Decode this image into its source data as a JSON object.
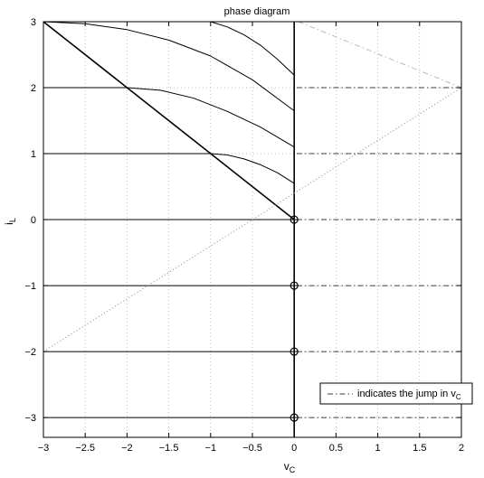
{
  "chart_data": {
    "type": "line",
    "title": "phase diagram",
    "xlabel": "v",
    "xlabel_sub": "C",
    "ylabel": "i",
    "ylabel_sub": "L",
    "xlim": [
      -3,
      2
    ],
    "ylim": [
      -3.3,
      3
    ],
    "x_ticks": [
      -3,
      -2.5,
      -2,
      -1.5,
      -1,
      -0.5,
      0,
      0.5,
      1,
      1.5,
      2
    ],
    "x_tick_labels": [
      "−3",
      "−2.5",
      "−2",
      "−1.5",
      "−1",
      "−0.5",
      "0",
      "0.5",
      "1",
      "1.5",
      "2"
    ],
    "y_ticks": [
      -3,
      -2,
      -1,
      0,
      1,
      2,
      3
    ],
    "y_tick_labels": [
      "−3",
      "−2",
      "−1",
      "0",
      "1",
      "2",
      "3"
    ],
    "grid": true,
    "legend": {
      "placement": "bottom-right",
      "text": "indicates the jump in v",
      "text_sub": "C"
    },
    "series": [
      {
        "style": "solid",
        "color": "#000000",
        "width": 1.6,
        "x": [
          -3,
          0
        ],
        "y": [
          3,
          0
        ]
      },
      {
        "style": "solid",
        "color": "#000000",
        "width": 1.6,
        "x": [
          0,
          0
        ],
        "y": [
          -3.3,
          3
        ]
      },
      {
        "style": "solid",
        "color": "#000000",
        "width": 1,
        "x": [
          -3,
          -0.03
        ],
        "y": [
          -3,
          -3
        ]
      },
      {
        "style": "solid",
        "color": "#000000",
        "width": 1,
        "x": [
          -3,
          -0.03
        ],
        "y": [
          -2,
          -2
        ]
      },
      {
        "style": "solid",
        "color": "#000000",
        "width": 1,
        "x": [
          -3,
          -0.03
        ],
        "y": [
          -1,
          -1
        ]
      },
      {
        "style": "solid",
        "color": "#000000",
        "width": 1,
        "x": [
          -3,
          -0.03
        ],
        "y": [
          0,
          0
        ]
      },
      {
        "style": "solid",
        "color": "#000000",
        "width": 1,
        "x": [
          -3,
          -1.0,
          -0.8,
          -0.6,
          -0.4,
          -0.2,
          0
        ],
        "y": [
          1,
          1,
          0.98,
          0.92,
          0.83,
          0.71,
          0.55
        ]
      },
      {
        "style": "solid",
        "color": "#000000",
        "width": 1,
        "x": [
          -3,
          -2.0,
          -1.6,
          -1.2,
          -0.8,
          -0.4,
          0
        ],
        "y": [
          2,
          2,
          1.96,
          1.84,
          1.64,
          1.4,
          1.1
        ]
      },
      {
        "style": "solid",
        "color": "#000000",
        "width": 1,
        "x": [
          -3,
          -2.5,
          -2.0,
          -1.5,
          -1.0,
          -0.5,
          0
        ],
        "y": [
          3,
          2.97,
          2.88,
          2.72,
          2.48,
          2.12,
          1.65
        ]
      },
      {
        "style": "solid",
        "color": "#000000",
        "width": 1,
        "x": [
          -1.0,
          -0.8,
          -0.6,
          -0.4,
          -0.2,
          0
        ],
        "y": [
          3,
          2.92,
          2.8,
          2.64,
          2.43,
          2.19
        ]
      },
      {
        "style": "dotted",
        "color": "#999999",
        "width": 1,
        "x": [
          -3,
          2
        ],
        "y": [
          -2,
          2
        ]
      },
      {
        "style": "dashdot",
        "color": "#bbbbbb",
        "width": 1,
        "x": [
          0.05,
          2
        ],
        "y": [
          3,
          2
        ]
      },
      {
        "style": "dashdot",
        "color": "#000000",
        "width": 0.8,
        "x": [
          0.03,
          2
        ],
        "y": [
          2,
          2
        ]
      },
      {
        "style": "dashdot",
        "color": "#000000",
        "width": 0.8,
        "x": [
          0.03,
          2
        ],
        "y": [
          1,
          1
        ]
      },
      {
        "style": "dashdot",
        "color": "#000000",
        "width": 0.8,
        "x": [
          0.03,
          2
        ],
        "y": [
          0,
          0
        ]
      },
      {
        "style": "dashdot",
        "color": "#000000",
        "width": 0.8,
        "x": [
          0.03,
          2
        ],
        "y": [
          -1,
          -1
        ]
      },
      {
        "style": "dashdot",
        "color": "#000000",
        "width": 0.8,
        "x": [
          0.03,
          2
        ],
        "y": [
          -2,
          -2
        ]
      },
      {
        "style": "dashdot",
        "color": "#000000",
        "width": 0.8,
        "x": [
          0.03,
          2
        ],
        "y": [
          -3,
          -3
        ]
      }
    ],
    "markers": {
      "shape": "circle-cross",
      "x": [
        0,
        0,
        0,
        0
      ],
      "y": [
        0,
        -1,
        -2,
        -3
      ]
    }
  }
}
